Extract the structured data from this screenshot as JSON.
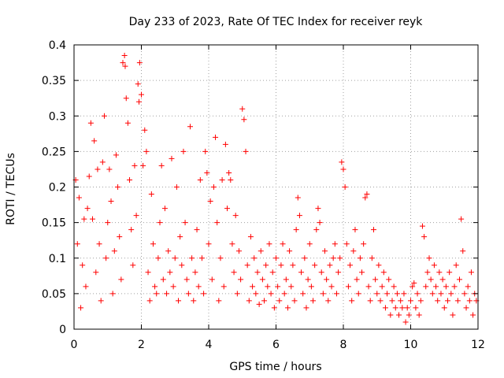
{
  "chart_data": {
    "type": "scatter",
    "title": "Day 233 of 2023, Rate Of TEC Index for receiver reyk",
    "xlabel": "GPS time / hours",
    "ylabel": "ROTI / TECUs",
    "xlim": [
      0,
      12
    ],
    "ylim": [
      0,
      0.4
    ],
    "xticks": [
      0,
      2,
      4,
      6,
      8,
      10,
      12
    ],
    "xtick_labels": [
      "0",
      "2",
      "4",
      "6",
      "8",
      "10",
      "12"
    ],
    "yticks": [
      0,
      0.05,
      0.1,
      0.15,
      0.2,
      0.25,
      0.3,
      0.35,
      0.4
    ],
    "ytick_labels": [
      "0",
      "0.05",
      "0.1",
      "0.15",
      "0.2",
      "0.25",
      "0.3",
      "0.35",
      "0.4"
    ],
    "grid": true,
    "marker": "+",
    "series_color": "#ff0000",
    "series": [
      {
        "name": "ROTI",
        "points": [
          [
            0.05,
            0.21
          ],
          [
            0.1,
            0.12
          ],
          [
            0.15,
            0.185
          ],
          [
            0.2,
            0.03
          ],
          [
            0.25,
            0.09
          ],
          [
            0.3,
            0.155
          ],
          [
            0.35,
            0.06
          ],
          [
            0.4,
            0.17
          ],
          [
            0.45,
            0.215
          ],
          [
            0.5,
            0.29
          ],
          [
            0.55,
            0.155
          ],
          [
            0.6,
            0.265
          ],
          [
            0.65,
            0.08
          ],
          [
            0.7,
            0.225
          ],
          [
            0.75,
            0.12
          ],
          [
            0.8,
            0.04
          ],
          [
            0.85,
            0.235
          ],
          [
            0.9,
            0.3
          ],
          [
            0.95,
            0.1
          ],
          [
            1.0,
            0.15
          ],
          [
            1.05,
            0.225
          ],
          [
            1.1,
            0.18
          ],
          [
            1.15,
            0.05
          ],
          [
            1.2,
            0.11
          ],
          [
            1.25,
            0.245
          ],
          [
            1.3,
            0.2
          ],
          [
            1.35,
            0.13
          ],
          [
            1.4,
            0.07
          ],
          [
            1.45,
            0.375
          ],
          [
            1.5,
            0.385
          ],
          [
            1.52,
            0.37
          ],
          [
            1.55,
            0.325
          ],
          [
            1.6,
            0.29
          ],
          [
            1.65,
            0.21
          ],
          [
            1.7,
            0.14
          ],
          [
            1.75,
            0.09
          ],
          [
            1.8,
            0.23
          ],
          [
            1.85,
            0.16
          ],
          [
            1.9,
            0.345
          ],
          [
            1.93,
            0.32
          ],
          [
            1.95,
            0.375
          ],
          [
            2.0,
            0.33
          ],
          [
            2.05,
            0.23
          ],
          [
            2.1,
            0.28
          ],
          [
            2.15,
            0.25
          ],
          [
            2.2,
            0.08
          ],
          [
            2.25,
            0.04
          ],
          [
            2.3,
            0.19
          ],
          [
            2.35,
            0.12
          ],
          [
            2.4,
            0.06
          ],
          [
            2.45,
            0.05
          ],
          [
            2.5,
            0.1
          ],
          [
            2.55,
            0.15
          ],
          [
            2.6,
            0.23
          ],
          [
            2.65,
            0.07
          ],
          [
            2.7,
            0.17
          ],
          [
            2.75,
            0.05
          ],
          [
            2.8,
            0.11
          ],
          [
            2.85,
            0.08
          ],
          [
            2.9,
            0.24
          ],
          [
            2.95,
            0.06
          ],
          [
            3.0,
            0.1
          ],
          [
            3.05,
            0.2
          ],
          [
            3.1,
            0.04
          ],
          [
            3.15,
            0.13
          ],
          [
            3.2,
            0.09
          ],
          [
            3.25,
            0.25
          ],
          [
            3.3,
            0.15
          ],
          [
            3.35,
            0.07
          ],
          [
            3.4,
            0.05
          ],
          [
            3.45,
            0.285
          ],
          [
            3.5,
            0.1
          ],
          [
            3.55,
            0.04
          ],
          [
            3.6,
            0.08
          ],
          [
            3.65,
            0.14
          ],
          [
            3.7,
            0.06
          ],
          [
            3.75,
            0.21
          ],
          [
            3.8,
            0.1
          ],
          [
            3.85,
            0.05
          ],
          [
            3.9,
            0.25
          ],
          [
            3.95,
            0.22
          ],
          [
            4.0,
            0.12
          ],
          [
            4.05,
            0.18
          ],
          [
            4.1,
            0.07
          ],
          [
            4.15,
            0.2
          ],
          [
            4.2,
            0.27
          ],
          [
            4.25,
            0.15
          ],
          [
            4.3,
            0.04
          ],
          [
            4.35,
            0.1
          ],
          [
            4.4,
            0.21
          ],
          [
            4.45,
            0.06
          ],
          [
            4.5,
            0.26
          ],
          [
            4.55,
            0.17
          ],
          [
            4.6,
            0.22
          ],
          [
            4.65,
            0.21
          ],
          [
            4.7,
            0.12
          ],
          [
            4.75,
            0.08
          ],
          [
            4.8,
            0.16
          ],
          [
            4.85,
            0.05
          ],
          [
            4.9,
            0.11
          ],
          [
            4.95,
            0.07
          ],
          [
            5.0,
            0.31
          ],
          [
            5.05,
            0.295
          ],
          [
            5.1,
            0.25
          ],
          [
            5.15,
            0.09
          ],
          [
            5.2,
            0.04
          ],
          [
            5.25,
            0.13
          ],
          [
            5.3,
            0.06
          ],
          [
            5.35,
            0.1
          ],
          [
            5.4,
            0.05
          ],
          [
            5.45,
            0.08
          ],
          [
            5.5,
            0.035
          ],
          [
            5.55,
            0.11
          ],
          [
            5.6,
            0.07
          ],
          [
            5.65,
            0.04
          ],
          [
            5.7,
            0.09
          ],
          [
            5.75,
            0.06
          ],
          [
            5.8,
            0.12
          ],
          [
            5.85,
            0.05
          ],
          [
            5.9,
            0.08
          ],
          [
            5.95,
            0.03
          ],
          [
            6.0,
            0.1
          ],
          [
            6.05,
            0.06
          ],
          [
            6.1,
            0.04
          ],
          [
            6.15,
            0.09
          ],
          [
            6.2,
            0.12
          ],
          [
            6.25,
            0.05
          ],
          [
            6.3,
            0.07
          ],
          [
            6.35,
            0.03
          ],
          [
            6.4,
            0.11
          ],
          [
            6.45,
            0.06
          ],
          [
            6.5,
            0.09
          ],
          [
            6.55,
            0.04
          ],
          [
            6.6,
            0.14
          ],
          [
            6.65,
            0.185
          ],
          [
            6.7,
            0.16
          ],
          [
            6.75,
            0.08
          ],
          [
            6.8,
            0.05
          ],
          [
            6.85,
            0.1
          ],
          [
            6.9,
            0.03
          ],
          [
            6.95,
            0.07
          ],
          [
            7.0,
            0.12
          ],
          [
            7.05,
            0.06
          ],
          [
            7.1,
            0.04
          ],
          [
            7.15,
            0.09
          ],
          [
            7.2,
            0.14
          ],
          [
            7.25,
            0.17
          ],
          [
            7.3,
            0.15
          ],
          [
            7.35,
            0.08
          ],
          [
            7.4,
            0.05
          ],
          [
            7.45,
            0.11
          ],
          [
            7.5,
            0.07
          ],
          [
            7.55,
            0.04
          ],
          [
            7.6,
            0.09
          ],
          [
            7.65,
            0.06
          ],
          [
            7.7,
            0.1
          ],
          [
            7.75,
            0.12
          ],
          [
            7.8,
            0.05
          ],
          [
            7.85,
            0.08
          ],
          [
            7.9,
            0.1
          ],
          [
            7.95,
            0.235
          ],
          [
            8.0,
            0.225
          ],
          [
            8.05,
            0.2
          ],
          [
            8.1,
            0.12
          ],
          [
            8.15,
            0.06
          ],
          [
            8.2,
            0.09
          ],
          [
            8.25,
            0.04
          ],
          [
            8.3,
            0.11
          ],
          [
            8.35,
            0.14
          ],
          [
            8.4,
            0.07
          ],
          [
            8.45,
            0.05
          ],
          [
            8.5,
            0.1
          ],
          [
            8.55,
            0.08
          ],
          [
            8.6,
            0.12
          ],
          [
            8.65,
            0.185
          ],
          [
            8.7,
            0.19
          ],
          [
            8.75,
            0.06
          ],
          [
            8.8,
            0.04
          ],
          [
            8.85,
            0.1
          ],
          [
            8.9,
            0.14
          ],
          [
            8.95,
            0.07
          ],
          [
            9.0,
            0.05
          ],
          [
            9.05,
            0.09
          ],
          [
            9.1,
            0.04
          ],
          [
            9.15,
            0.06
          ],
          [
            9.2,
            0.08
          ],
          [
            9.25,
            0.03
          ],
          [
            9.3,
            0.05
          ],
          [
            9.35,
            0.07
          ],
          [
            9.4,
            0.02
          ],
          [
            9.45,
            0.04
          ],
          [
            9.5,
            0.06
          ],
          [
            9.55,
            0.03
          ],
          [
            9.6,
            0.05
          ],
          [
            9.65,
            0.02
          ],
          [
            9.7,
            0.04
          ],
          [
            9.75,
            0.03
          ],
          [
            9.8,
            0.05
          ],
          [
            9.85,
            0.01
          ],
          [
            9.9,
            0.03
          ],
          [
            9.95,
            0.02
          ],
          [
            10.0,
            0.04
          ],
          [
            10.05,
            0.06
          ],
          [
            10.1,
            0.065
          ],
          [
            10.15,
            0.03
          ],
          [
            10.2,
            0.05
          ],
          [
            10.25,
            0.02
          ],
          [
            10.3,
            0.04
          ],
          [
            10.35,
            0.145
          ],
          [
            10.4,
            0.13
          ],
          [
            10.45,
            0.06
          ],
          [
            10.5,
            0.08
          ],
          [
            10.55,
            0.1
          ],
          [
            10.6,
            0.07
          ],
          [
            10.65,
            0.05
          ],
          [
            10.7,
            0.09
          ],
          [
            10.75,
            0.06
          ],
          [
            10.8,
            0.04
          ],
          [
            10.85,
            0.08
          ],
          [
            10.9,
            0.05
          ],
          [
            10.95,
            0.07
          ],
          [
            11.0,
            0.03
          ],
          [
            11.05,
            0.06
          ],
          [
            11.1,
            0.04
          ],
          [
            11.15,
            0.08
          ],
          [
            11.2,
            0.05
          ],
          [
            11.25,
            0.02
          ],
          [
            11.3,
            0.06
          ],
          [
            11.35,
            0.09
          ],
          [
            11.4,
            0.04
          ],
          [
            11.45,
            0.07
          ],
          [
            11.5,
            0.155
          ],
          [
            11.55,
            0.11
          ],
          [
            11.6,
            0.05
          ],
          [
            11.65,
            0.03
          ],
          [
            11.7,
            0.06
          ],
          [
            11.75,
            0.04
          ],
          [
            11.8,
            0.08
          ],
          [
            11.85,
            0.02
          ],
          [
            11.9,
            0.05
          ],
          [
            11.95,
            0.04
          ]
        ]
      }
    ]
  }
}
